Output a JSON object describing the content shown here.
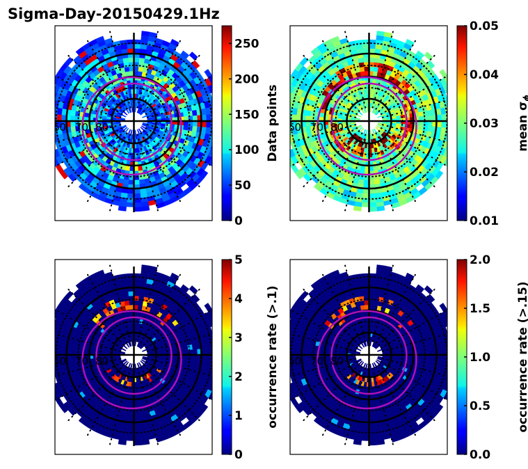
{
  "figure_title": "Sigma-Day-20150429.1Hz",
  "chart_data": [
    {
      "type": "heatmap",
      "projection": "polar (magnetic latitude / MLT)",
      "panel": "top-left",
      "colorbar_label": "Data points",
      "colormap": "jet",
      "vmin": 0,
      "vmax": 275,
      "ticks": [
        "0",
        "50",
        "100",
        "150",
        "200",
        "250"
      ],
      "tick_values": [
        0,
        50,
        100,
        150,
        200,
        250
      ],
      "latitude_labels": [
        "60",
        "70",
        "80"
      ],
      "typical_value_range": [
        20,
        200
      ],
      "hotspots": [
        {
          "where": "dayside ~70-75 lat",
          "value": 250
        }
      ]
    },
    {
      "type": "heatmap",
      "projection": "polar (magnetic latitude / MLT)",
      "panel": "top-right",
      "colorbar_label": "mean σ_φ",
      "colormap": "jet",
      "vmin": 0.01,
      "vmax": 0.05,
      "ticks": [
        "0.01",
        "0.02",
        "0.03",
        "0.04",
        "0.05"
      ],
      "tick_values": [
        0.01,
        0.02,
        0.03,
        0.04,
        0.05
      ],
      "latitude_labels": [
        "60",
        "70",
        "80"
      ],
      "typical_value_range": [
        0.02,
        0.035
      ],
      "hotspots": [
        {
          "where": "cusp ~75-80 lat noon",
          "value": 0.05
        },
        {
          "where": "nightside auroral oval",
          "value": 0.05
        }
      ]
    },
    {
      "type": "heatmap",
      "projection": "polar (magnetic latitude / MLT)",
      "panel": "bottom-left",
      "colorbar_label": "occurrence rate (>.1)",
      "colormap": "jet",
      "vmin": 0,
      "vmax": 5,
      "ticks": [
        "0",
        "1",
        "2",
        "3",
        "4",
        "5"
      ],
      "tick_values": [
        0,
        1,
        2,
        3,
        4,
        5
      ],
      "latitude_labels": [
        "60",
        "70",
        "80"
      ],
      "typical_value_range": [
        0,
        0
      ],
      "hotspots": [
        {
          "where": "cusp ~77 lat noon",
          "value": 5
        },
        {
          "where": "nightside oval ~67 lat",
          "value": 5
        }
      ]
    },
    {
      "type": "heatmap",
      "projection": "polar (magnetic latitude / MLT)",
      "panel": "bottom-right",
      "colorbar_label": "occurrence rate (>.15)",
      "colormap": "jet",
      "vmin": 0.0,
      "vmax": 2.0,
      "ticks": [
        "0.0",
        "0.5",
        "1.0",
        "1.5",
        "2.0"
      ],
      "tick_values": [
        0.0,
        0.5,
        1.0,
        1.5,
        2.0
      ],
      "latitude_labels": [
        "60",
        "70",
        "80"
      ],
      "typical_value_range": [
        0,
        0
      ],
      "hotspots": [
        {
          "where": "cusp ~77 lat noon",
          "value": 2.0
        },
        {
          "where": "nightside oval ~67 lat",
          "value": 2.0
        }
      ]
    }
  ],
  "colors": {
    "grid_black": "#000000",
    "oval_magenta": "#b010b8"
  }
}
